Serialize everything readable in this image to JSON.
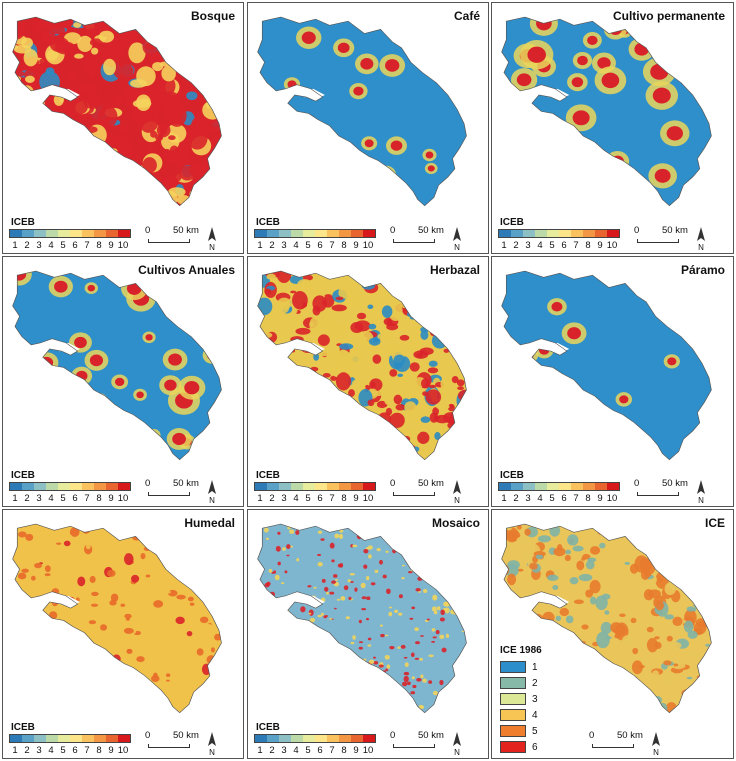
{
  "panels": [
    {
      "title": "Bosque",
      "legend_title": "ICEB",
      "legend_type": "ramp",
      "base": "#d9232a",
      "accent": "#f5d25c",
      "patch": "#2b8cc4",
      "pattern": "forest"
    },
    {
      "title": "Café",
      "legend_title": "ICEB",
      "legend_type": "ramp",
      "base": "#2f8fca",
      "accent": "#e9d65a",
      "patch": "#d9232a",
      "pattern": "sparse"
    },
    {
      "title": "Cultivo permanente",
      "legend_title": "ICEB",
      "legend_type": "ramp",
      "base": "#2f8fca",
      "accent": "#e9d65a",
      "patch": "#d9232a",
      "pattern": "medium"
    },
    {
      "title": "Cultivos Anuales",
      "legend_title": "ICEB",
      "legend_type": "ramp",
      "base": "#2f8fca",
      "accent": "#e9d65a",
      "patch": "#d9232a",
      "pattern": "medium"
    },
    {
      "title": "Herbazal",
      "legend_title": "ICEB",
      "legend_type": "ramp",
      "base": "#e8c84e",
      "accent": "#d9232a",
      "patch": "#2b8cc4",
      "pattern": "dense"
    },
    {
      "title": "Páramo",
      "legend_title": "ICEB",
      "legend_type": "ramp",
      "base": "#2f8fca",
      "accent": "#e9d65a",
      "patch": "#d9232a",
      "pattern": "rare"
    },
    {
      "title": "Humedal",
      "legend_title": "ICEB",
      "legend_type": "ramp",
      "base": "#f0c24a",
      "accent": "#e86a2a",
      "patch": "#d9232a",
      "pattern": "wetland"
    },
    {
      "title": "Mosaico",
      "legend_title": "ICEB",
      "legend_type": "ramp",
      "base": "#7fb6cf",
      "accent": "#f2d45a",
      "patch": "#d9232a",
      "pattern": "mosaic"
    },
    {
      "title": "ICE",
      "legend_title": "ICE 1986",
      "legend_type": "boxes",
      "base": "#e9c55a",
      "accent": "#e87b2e",
      "patch": "#7fb3a6",
      "pattern": "ice"
    }
  ],
  "iceb_legend": {
    "labels": [
      "1",
      "2",
      "3",
      "4",
      "5",
      "6",
      "7",
      "8",
      "9",
      "10"
    ],
    "colors": [
      "#2c7bb6",
      "#5aa1c8",
      "#8cc0c4",
      "#bcd9a8",
      "#e6ec9c",
      "#fde68a",
      "#f9c25e",
      "#f39745",
      "#e8652f",
      "#d7191c"
    ]
  },
  "ice_legend": {
    "labels": [
      "1",
      "2",
      "3",
      "4",
      "5",
      "6"
    ],
    "colors": [
      "#2c8fcb",
      "#86b9a7",
      "#dde896",
      "#f6c553",
      "#ef7f2f",
      "#e3241e"
    ]
  },
  "scale_label": "50 km",
  "scale_zero": "0",
  "north_label": "N"
}
